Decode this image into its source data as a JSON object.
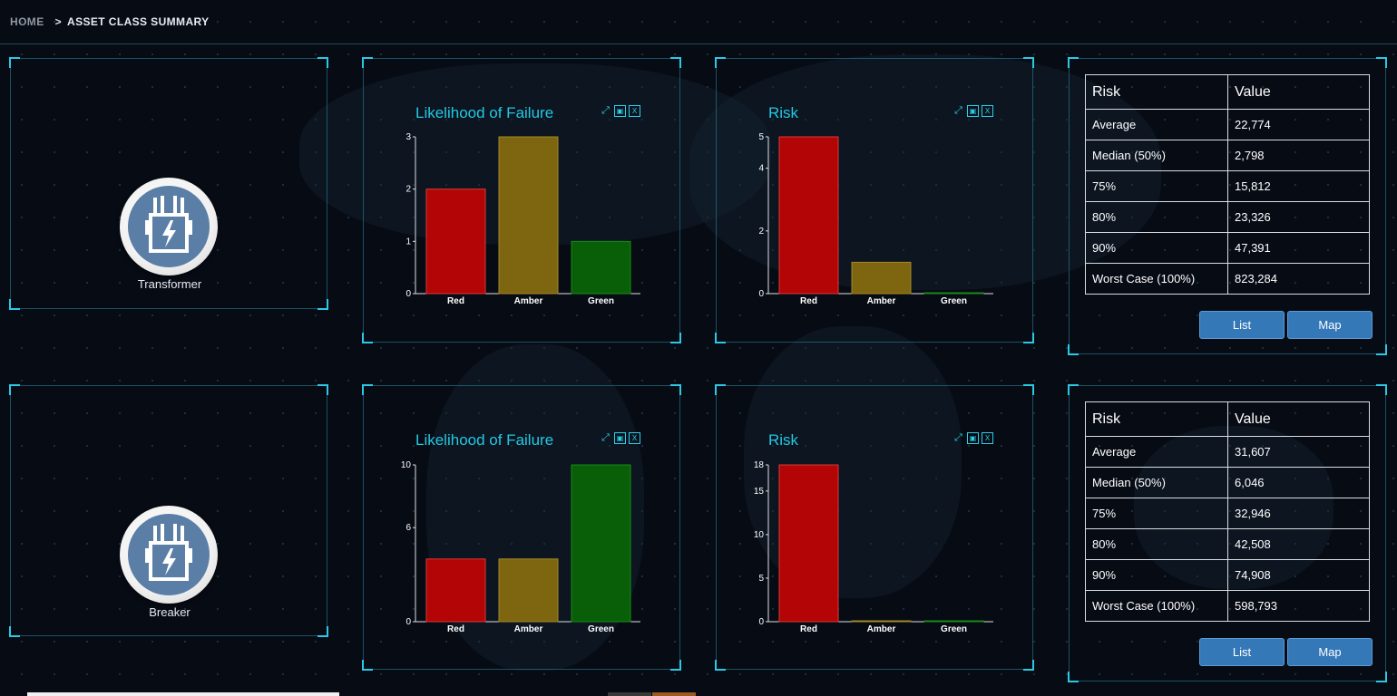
{
  "breadcrumb": {
    "home": "HOME",
    "separator": ">",
    "current": "ASSET CLASS SUMMARY"
  },
  "colors": {
    "red": "#b30505",
    "amber": "#7e6510",
    "green": "#085f08",
    "accent": "#23c8e3"
  },
  "icons": [
    "expand-icon",
    "image-export-icon",
    "excel-export-icon",
    "transformer-icon"
  ],
  "rows": [
    {
      "asset_name": "Transformer",
      "lof_chart": {
        "type": "bar",
        "title": "Likelihood of Failure",
        "categories": [
          "Red",
          "Amber",
          "Green"
        ],
        "values": [
          2,
          3,
          1
        ],
        "ylim": [
          0,
          3
        ],
        "yticks": [
          0,
          1,
          2,
          3
        ]
      },
      "risk_chart": {
        "type": "bar",
        "title": "Risk",
        "categories": [
          "Red",
          "Amber",
          "Green"
        ],
        "values": [
          5,
          1,
          0
        ],
        "ylim": [
          0,
          5
        ],
        "yticks": [
          0,
          2,
          4,
          5
        ]
      },
      "stats": {
        "header_risk": "Risk",
        "header_value": "Value",
        "rows": [
          {
            "label": "Average",
            "value": "22,774"
          },
          {
            "label": "Median (50%)",
            "value": "2,798"
          },
          {
            "label": "75%",
            "value": "15,812"
          },
          {
            "label": "80%",
            "value": "23,326"
          },
          {
            "label": "90%",
            "value": "47,391"
          },
          {
            "label": "Worst Case (100%)",
            "value": "823,284"
          }
        ]
      },
      "buttons": {
        "list": "List",
        "map": "Map"
      }
    },
    {
      "asset_name": "Breaker",
      "lof_chart": {
        "type": "bar",
        "title": "Likelihood of Failure",
        "categories": [
          "Red",
          "Amber",
          "Green"
        ],
        "values": [
          4,
          4,
          10
        ],
        "ylim": [
          0,
          10
        ],
        "yticks": [
          0,
          6,
          10
        ]
      },
      "risk_chart": {
        "type": "bar",
        "title": "Risk",
        "categories": [
          "Red",
          "Amber",
          "Green"
        ],
        "values": [
          18,
          0,
          0
        ],
        "ylim": [
          0,
          18
        ],
        "yticks": [
          0,
          5,
          10,
          15,
          18
        ]
      },
      "stats": {
        "header_risk": "Risk",
        "header_value": "Value",
        "rows": [
          {
            "label": "Average",
            "value": "31,607"
          },
          {
            "label": "Median (50%)",
            "value": "6,046"
          },
          {
            "label": "75%",
            "value": "32,946"
          },
          {
            "label": "80%",
            "value": "42,508"
          },
          {
            "label": "90%",
            "value": "74,908"
          },
          {
            "label": "Worst Case (100%)",
            "value": "598,793"
          }
        ]
      },
      "buttons": {
        "list": "List",
        "map": "Map"
      }
    }
  ]
}
